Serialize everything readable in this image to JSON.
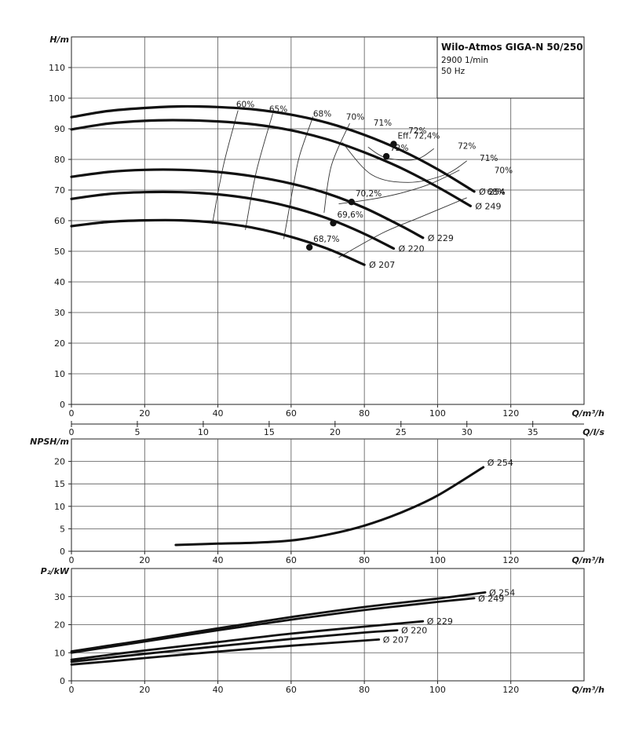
{
  "colors": {
    "curve": "#111111",
    "grid": "#555555",
    "eff": "#333333"
  },
  "title": {
    "name": "Wilo-Atmos GIGA-N 50/250",
    "speed": "2900 1/min",
    "freq": "50 Hz"
  },
  "chart_data": [
    {
      "type": "line",
      "panel": "head",
      "ylabel": "H/m",
      "xlabel": "Q/m³/h",
      "xlabel2": "Q/l/s",
      "xlim": [
        0,
        140
      ],
      "ylim": [
        0,
        120
      ],
      "xticks": [
        0,
        20,
        40,
        60,
        80,
        100,
        120
      ],
      "yticks": [
        0,
        10,
        20,
        30,
        40,
        50,
        60,
        70,
        80,
        90,
        100,
        110
      ],
      "x2ticks": [
        0,
        5,
        10,
        15,
        20,
        25,
        30,
        35
      ],
      "series": [
        {
          "name": "Ø 254",
          "x": [
            0,
            10,
            20,
            30,
            40,
            50,
            60,
            70,
            80,
            90,
            100,
            110
          ],
          "y": [
            93.8,
            95.8,
            96.8,
            97.3,
            97.1,
            96.3,
            94.6,
            91.9,
            88,
            83,
            76.8,
            69.5
          ]
        },
        {
          "name": "Ø 249",
          "x": [
            0,
            10,
            20,
            30,
            40,
            50,
            60,
            70,
            80,
            90,
            100,
            109
          ],
          "y": [
            89.8,
            91.7,
            92.6,
            92.8,
            92.4,
            91.4,
            89.5,
            86.5,
            82.3,
            77.2,
            71,
            64.8
          ]
        },
        {
          "name": "Ø 229",
          "x": [
            0,
            10,
            20,
            30,
            40,
            50,
            60,
            70,
            80,
            90,
            96
          ],
          "y": [
            74.3,
            75.9,
            76.6,
            76.6,
            75.9,
            74.4,
            72.1,
            68.8,
            64.2,
            58.3,
            54.4
          ]
        },
        {
          "name": "Ø 220",
          "x": [
            0,
            10,
            20,
            30,
            40,
            50,
            60,
            70,
            80,
            88
          ],
          "y": [
            67.1,
            68.7,
            69.3,
            69.3,
            68.6,
            67,
            64.4,
            60.7,
            55.7,
            50.9
          ]
        },
        {
          "name": "Ø 207",
          "x": [
            0,
            10,
            20,
            30,
            40,
            50,
            60,
            70,
            80
          ],
          "y": [
            58.2,
            59.6,
            60.1,
            60.1,
            59.3,
            57.6,
            54.7,
            50.8,
            45.6
          ]
        }
      ],
      "efficiency_lines": [
        {
          "label": "60%",
          "x": [
            38.5,
            41.5,
            45.5
          ],
          "y": [
            59,
            78,
            96
          ]
        },
        {
          "label": "65%",
          "x": [
            47.5,
            50.5,
            55
          ],
          "y": [
            57,
            76,
            95
          ]
        },
        {
          "label": "68%",
          "x": [
            58,
            61,
            62.5,
            66
          ],
          "y": [
            54,
            74,
            82,
            94
          ]
        },
        {
          "label": "70%",
          "x": [
            69,
            71,
            76
          ],
          "y": [
            62.6,
            78,
            91.8
          ]
        },
        {
          "label": "71%",
          "x": [
            74,
            82,
            92,
            102,
            108
          ],
          "y": [
            85.5,
            75,
            72.5,
            75,
            79.5
          ]
        },
        {
          "label": "72%",
          "x": [
            81,
            86,
            94,
            99
          ],
          "y": [
            84,
            80.5,
            80,
            83.5
          ]
        },
        {
          "label": "70%",
          "x": [
            73,
            82,
            90,
            98,
            106
          ],
          "y": [
            65.5,
            67,
            69,
            72,
            76.5
          ]
        },
        {
          "label": "68%",
          "x": [
            73,
            85,
            95,
            108
          ],
          "y": [
            48,
            56,
            61,
            67.5
          ]
        }
      ],
      "efficiency_points": [
        {
          "label": "Eff. 72,4%",
          "x": 88,
          "y": 85
        },
        {
          "label": "72%",
          "x": 86,
          "y": 81
        },
        {
          "label": "70,2%",
          "x": 76.5,
          "y": 66.1
        },
        {
          "label": "69,6%",
          "x": 71.5,
          "y": 59.2
        },
        {
          "label": "68,7%",
          "x": 65,
          "y": 51.3
        }
      ],
      "eff_text": [
        {
          "label": "60%",
          "x": 47.5,
          "y": 97
        },
        {
          "label": "65%",
          "x": 56.5,
          "y": 95.5
        },
        {
          "label": "68%",
          "x": 68.5,
          "y": 94
        },
        {
          "label": "70%",
          "x": 77.5,
          "y": 93
        },
        {
          "label": "71%",
          "x": 85,
          "y": 91
        },
        {
          "label": "72%",
          "x": 94.5,
          "y": 88.5
        },
        {
          "label": "72%",
          "x": 108,
          "y": 83.5
        },
        {
          "label": "71%",
          "x": 114,
          "y": 79.5
        },
        {
          "label": "70%",
          "x": 118,
          "y": 75.5
        },
        {
          "label": "68%",
          "x": 116,
          "y": 68.5
        }
      ]
    },
    {
      "type": "line",
      "panel": "npsh",
      "ylabel": "NPSH/m",
      "xlabel": "Q/m³/h",
      "xlim": [
        0,
        140
      ],
      "ylim": [
        0,
        25
      ],
      "xticks": [
        0,
        20,
        40,
        60,
        80,
        100,
        120
      ],
      "yticks": [
        0,
        5,
        10,
        15,
        20
      ],
      "series": [
        {
          "name": "Ø 254",
          "x": [
            28.5,
            40,
            50,
            60,
            70,
            80,
            90,
            100,
            112.5
          ],
          "y": [
            1.4,
            1.7,
            1.9,
            2.4,
            3.7,
            5.7,
            8.6,
            12.4,
            18.7
          ]
        }
      ]
    },
    {
      "type": "line",
      "panel": "power",
      "ylabel": "P₂/kW",
      "xlabel": "Q/m³/h",
      "xlim": [
        0,
        140
      ],
      "ylim": [
        0,
        40
      ],
      "xticks": [
        0,
        20,
        40,
        60,
        80,
        100,
        120
      ],
      "yticks": [
        0,
        10,
        20,
        30
      ],
      "series": [
        {
          "name": "Ø 254",
          "x": [
            0,
            10,
            20,
            40,
            60,
            80,
            100,
            113
          ],
          "y": [
            10.5,
            12.5,
            14.5,
            18.7,
            22.7,
            26.3,
            29.3,
            31.5
          ]
        },
        {
          "name": "Ø 249",
          "x": [
            0,
            10,
            20,
            40,
            60,
            80,
            100,
            110
          ],
          "y": [
            10,
            12,
            14,
            18,
            21.8,
            25.2,
            28.1,
            29.4
          ]
        },
        {
          "name": "Ø 229",
          "x": [
            0,
            10,
            20,
            40,
            60,
            80,
            96
          ],
          "y": [
            7.5,
            9.2,
            10.8,
            13.8,
            16.8,
            19.3,
            21.2
          ]
        },
        {
          "name": "Ø 220",
          "x": [
            0,
            10,
            20,
            40,
            60,
            80,
            89
          ],
          "y": [
            6.8,
            8.2,
            9.6,
            12.3,
            14.9,
            17.2,
            18
          ]
        },
        {
          "name": "Ø 207",
          "x": [
            0,
            10,
            20,
            40,
            60,
            84
          ],
          "y": [
            5.8,
            6.9,
            8.1,
            10.4,
            12.5,
            14.7
          ]
        }
      ]
    }
  ]
}
